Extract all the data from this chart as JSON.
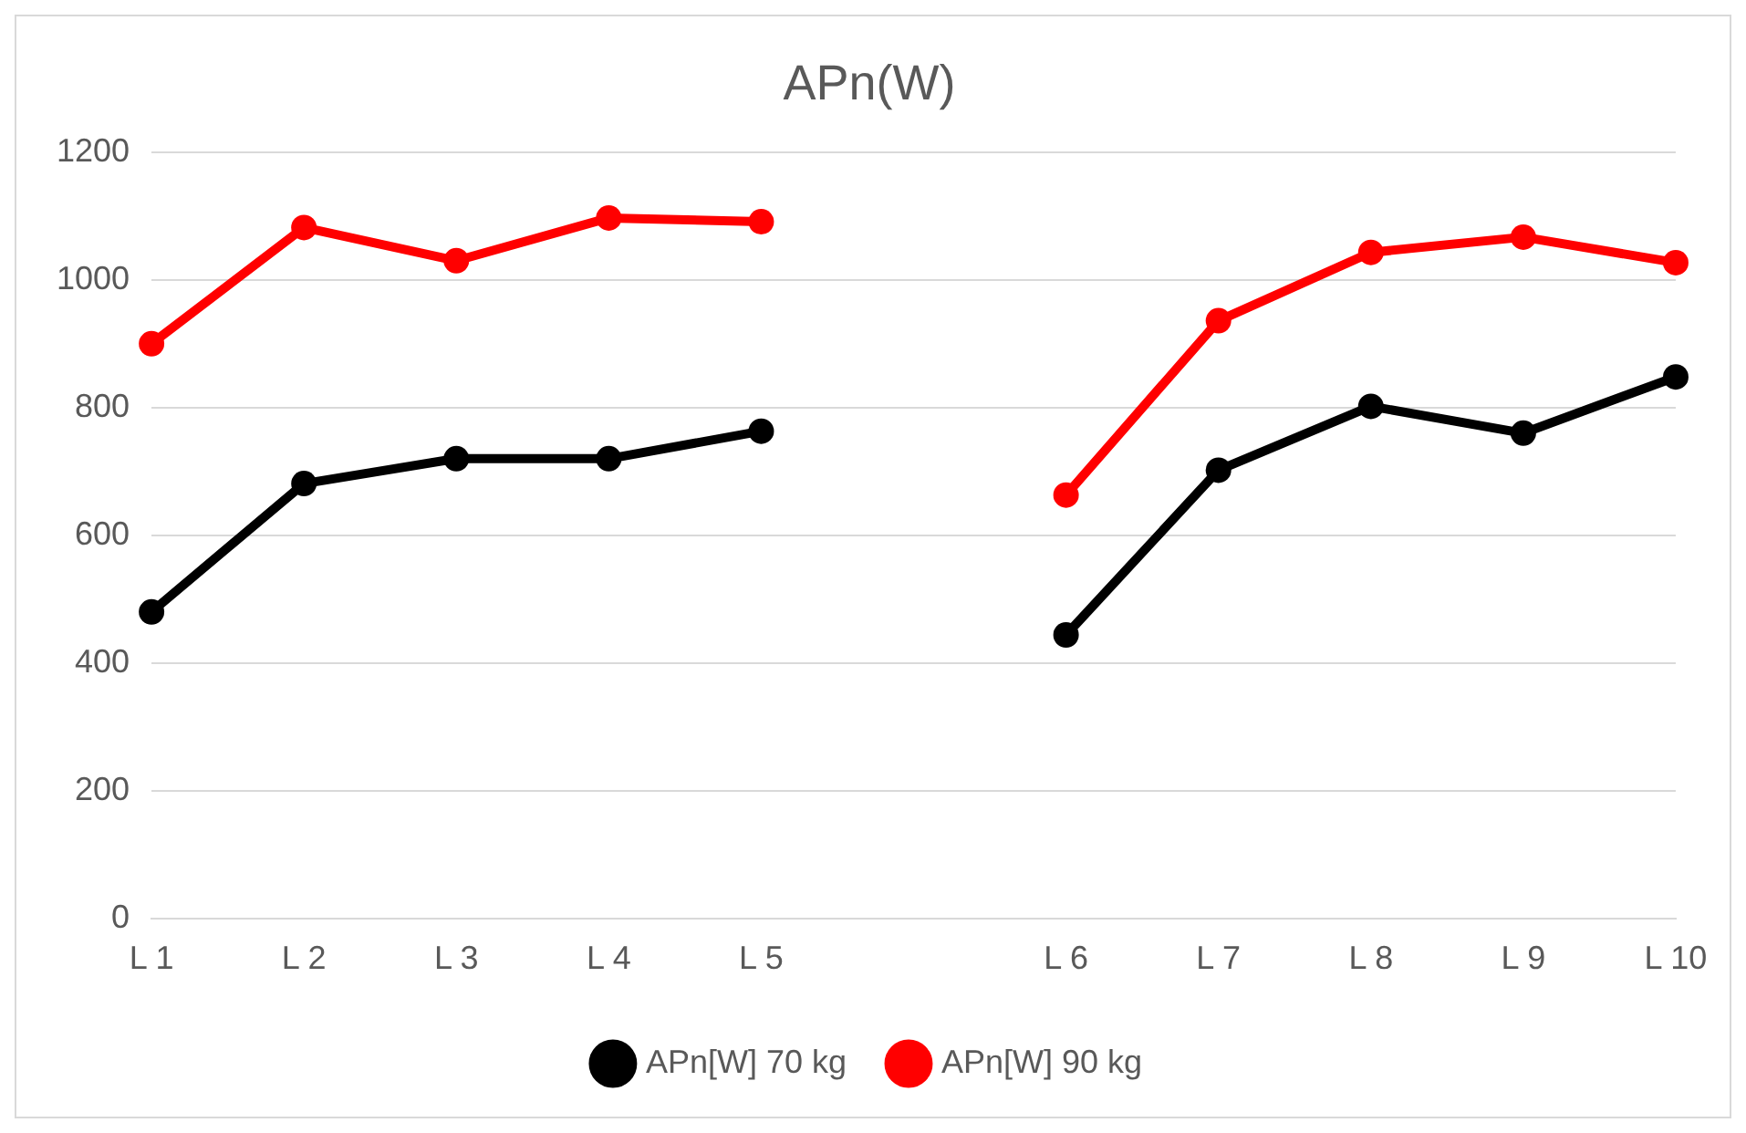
{
  "chart_data": {
    "type": "line",
    "title": "APn(W)",
    "categories": [
      "L 1",
      "L 2",
      "L 3",
      "L 4",
      "L 5",
      null,
      "L 6",
      "L 7",
      "L 8",
      "L 9",
      "L 10"
    ],
    "series": [
      {
        "name": "APn[W] 70 kg",
        "color": "#000000",
        "values": [
          480,
          681,
          720,
          720,
          763,
          null,
          444,
          702,
          802,
          760,
          848
        ]
      },
      {
        "name": "APn[W] 90 kg",
        "color": "#ff0000",
        "values": [
          900,
          1082,
          1030,
          1097,
          1091,
          null,
          663,
          936,
          1043,
          1067,
          1027
        ]
      }
    ],
    "ylim": [
      0,
      1200
    ],
    "yticks": [
      0,
      200,
      400,
      600,
      800,
      1000,
      1200
    ],
    "grid": "y",
    "legend": "bottom",
    "marker": "circle",
    "line_style": "solid"
  }
}
